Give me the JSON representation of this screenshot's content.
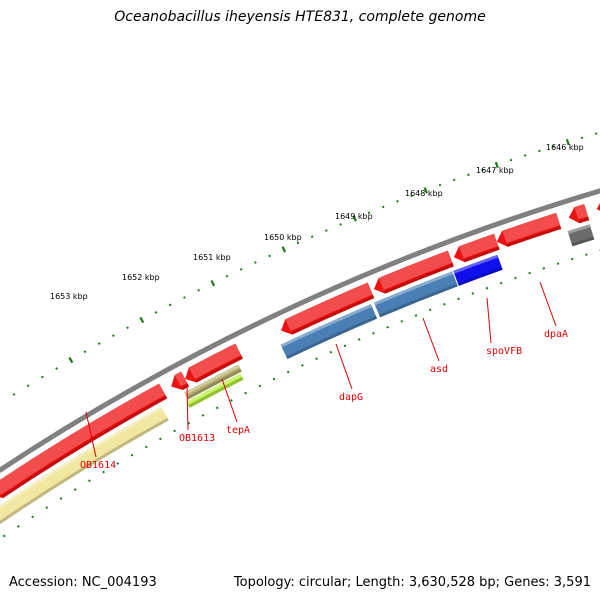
{
  "title": "Oceanobacillus iheyensis HTE831, complete genome",
  "footer": {
    "accession": "Accession: NC_004193",
    "summary": "Topology: circular; Length: 3,630,528 bp; Genes: 3,591"
  },
  "ruler": {
    "labels": [
      "1653 kbp",
      "1652 kbp",
      "1651 kbp",
      "1650 kbp",
      "1649 kbp",
      "1648 kbp",
      "1647 kbp",
      "1646 kbp"
    ]
  },
  "gene_labels": [
    "OB1614",
    "OB1613",
    "tepA",
    "dapG",
    "asd",
    "spoVFB",
    "dpaA"
  ],
  "colors": {
    "backbone": "#808080",
    "ruler": "#1a7a1a",
    "forward_gene": "#ee1111",
    "orf_blue": "#4a7fb5",
    "orf_yellow": "#f2e7a0",
    "orf_olive": "#b8b070",
    "orf_lime": "#b6f03c",
    "orf_strong_blue": "#1010ee",
    "orf_grey": "#6b6b6b",
    "label": "#e00000"
  }
}
